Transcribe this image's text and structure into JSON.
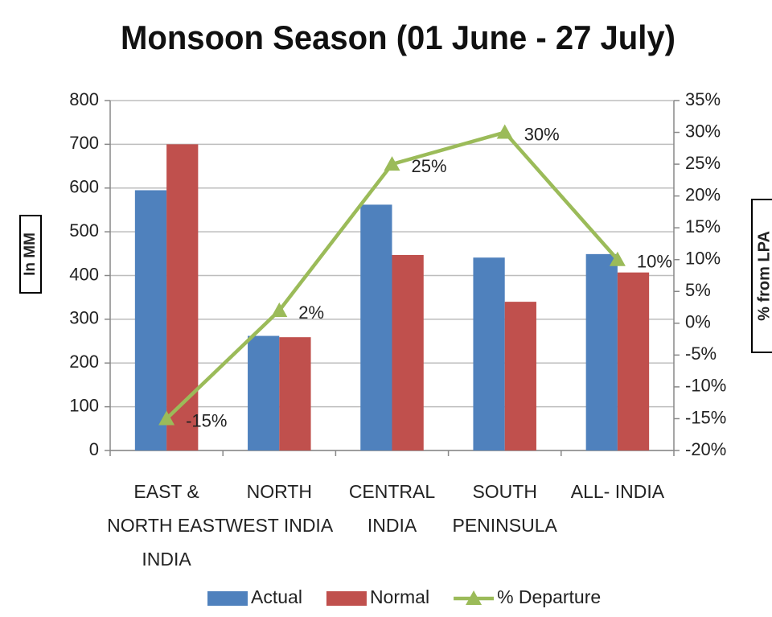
{
  "chart_data": {
    "type": "bar",
    "title": "Monsoon Season (01 June - 27 July)",
    "y_label": "In MM",
    "y2_label": "% from LPA",
    "categories": [
      [
        "EAST &",
        "NORTH EAST",
        "INDIA"
      ],
      [
        "NORTH",
        "WEST INDIA"
      ],
      [
        "CENTRAL",
        "INDIA"
      ],
      [
        "SOUTH",
        "PENINSULA"
      ],
      [
        "ALL- INDIA"
      ]
    ],
    "series": [
      {
        "name": "Actual",
        "type": "bar",
        "color": "#4f81bd",
        "values": [
          595,
          262,
          562,
          441,
          449
        ]
      },
      {
        "name": "Normal",
        "type": "bar",
        "color": "#c0504d",
        "values": [
          700,
          259,
          447,
          340,
          407
        ]
      },
      {
        "name": "% Departure",
        "type": "line",
        "axis": "y2",
        "color": "#9bbb59",
        "values": [
          -15,
          2,
          25,
          30,
          10
        ],
        "value_labels": [
          "-15%",
          "2%",
          "25%",
          "30%",
          "10%"
        ]
      }
    ],
    "ylim": [
      0,
      800
    ],
    "yticks": [
      0,
      100,
      200,
      300,
      400,
      500,
      600,
      700,
      800
    ],
    "y2lim": [
      -20,
      35
    ],
    "y2ticks": [
      {
        "value": -20,
        "label": "-20%"
      },
      {
        "value": -15,
        "label": "-15%"
      },
      {
        "value": -10,
        "label": "-10%"
      },
      {
        "value": -5,
        "label": "-5%"
      },
      {
        "value": 0,
        "label": "0%"
      },
      {
        "value": 5,
        "label": "5%"
      },
      {
        "value": 10,
        "label": "10%"
      },
      {
        "value": 15,
        "label": "15%"
      },
      {
        "value": 20,
        "label": "20%"
      },
      {
        "value": 25,
        "label": "25%"
      },
      {
        "value": 30,
        "label": "30%"
      },
      {
        "value": 35,
        "label": "35%"
      }
    ],
    "grid": true,
    "legend": "bottom"
  }
}
